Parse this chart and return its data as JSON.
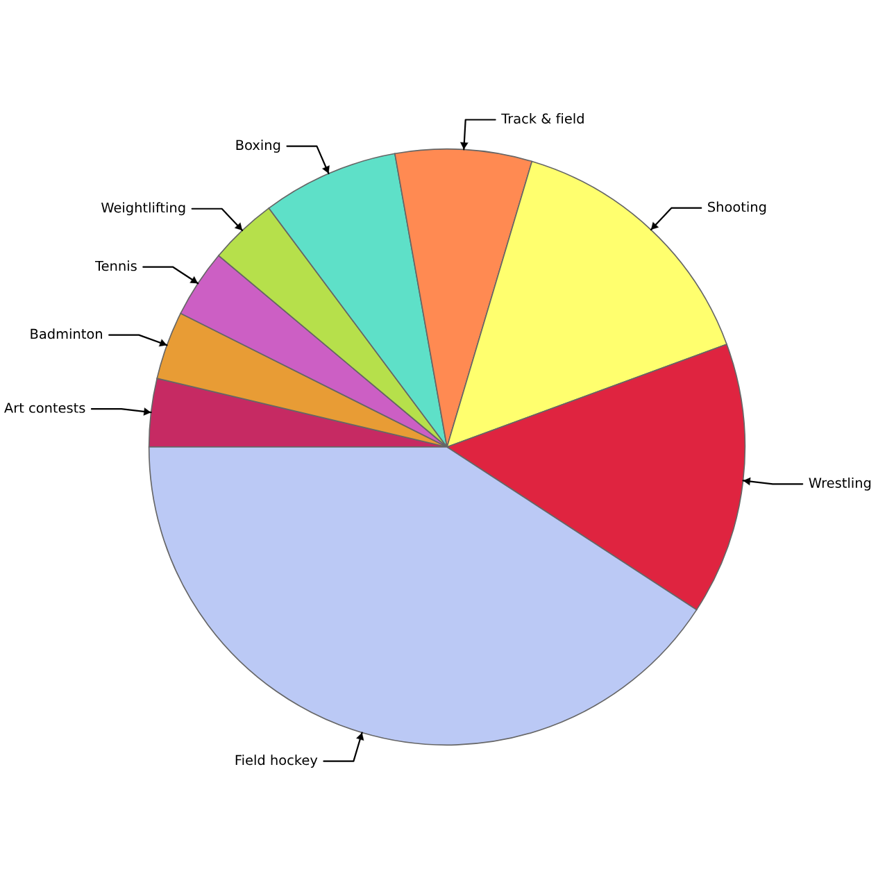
{
  "chart_data": {
    "type": "pie",
    "categories": [
      "Art contests",
      "Badminton",
      "Tennis",
      "Weightlifting",
      "Boxing",
      "Track & field",
      "Shooting",
      "Wrestling",
      "Field hockey"
    ],
    "values": [
      3.7,
      3.7,
      3.7,
      3.7,
      7.4,
      7.4,
      14.8,
      14.8,
      40.8
    ],
    "colors": [
      "#c62a63",
      "#e89c35",
      "#cc5fc4",
      "#b6e04b",
      "#5ee0c8",
      "#ff8a52",
      "#ffff6e",
      "#df2440",
      "#bbc9f5"
    ],
    "legend": false
  }
}
